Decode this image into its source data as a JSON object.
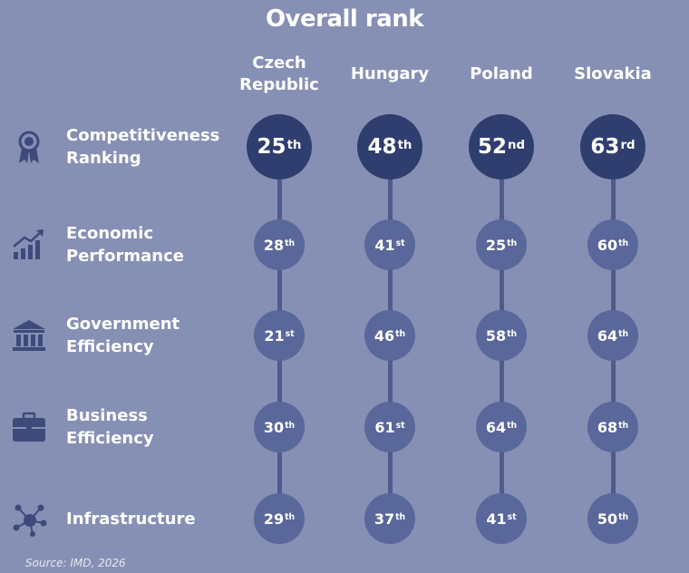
{
  "chart_data": {
    "type": "table",
    "title": "Overall rank",
    "columns": [
      "Czech\nRepublic",
      "Hungary",
      "Poland",
      "Slovakia"
    ],
    "rows": [
      {
        "label": "Competitiveness\nRanking",
        "icon": "award-ribbon-icon",
        "values": [
          25,
          48,
          52,
          63
        ],
        "suffixes": [
          "th",
          "th",
          "nd",
          "rd"
        ]
      },
      {
        "label": "Economic\nPerformance",
        "icon": "growth-chart-icon",
        "values": [
          28,
          41,
          25,
          60
        ],
        "suffixes": [
          "th",
          "st",
          "th",
          "th"
        ]
      },
      {
        "label": "Government\nEfficiency",
        "icon": "government-building-icon",
        "values": [
          21,
          46,
          58,
          64
        ],
        "suffixes": [
          "st",
          "th",
          "th",
          "th"
        ]
      },
      {
        "label": "Business\nEfficiency",
        "icon": "briefcase-icon",
        "values": [
          30,
          61,
          64,
          68
        ],
        "suffixes": [
          "th",
          "st",
          "th",
          "th"
        ]
      },
      {
        "label": "Infrastructure",
        "icon": "network-icon",
        "values": [
          29,
          37,
          41,
          50
        ],
        "suffixes": [
          "th",
          "th",
          "st",
          "th"
        ]
      }
    ],
    "source": "Source: IMD, 2026"
  },
  "colors": {
    "background": "#8690b4",
    "big_circle": "#2f3e6e",
    "small_circle": "#5a679a",
    "connector": "#4f5b89",
    "icon": "#3d4a7a"
  }
}
